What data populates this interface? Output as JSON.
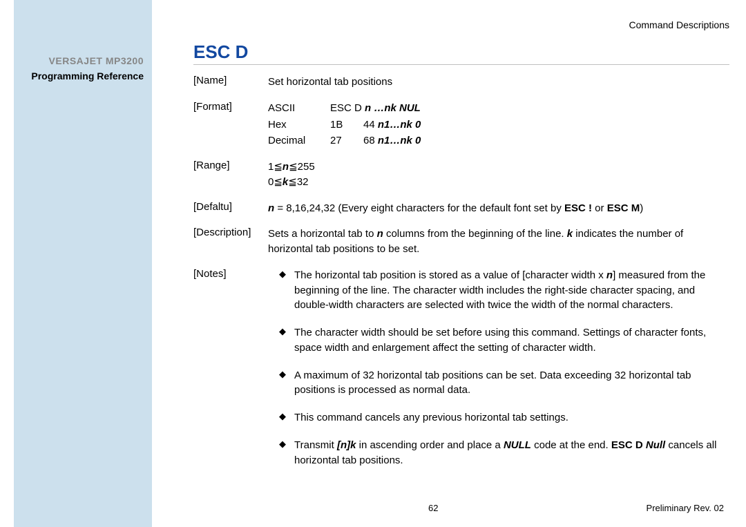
{
  "sidebar": {
    "title": "VERSAJET MP3200",
    "subtitle": "Programming Reference"
  },
  "header": {
    "right": "Command  Descriptions"
  },
  "command": {
    "title": "ESC D"
  },
  "sections": {
    "name": {
      "label": "[Name]",
      "value": "Set horizontal tab positions"
    },
    "format": {
      "label": "[Format]",
      "rows": {
        "ascii": {
          "enc": "ASCII",
          "val_pre": "ESC D ",
          "val_bold": "n …nk NUL"
        },
        "hex": {
          "enc": "Hex",
          "col2": "1B",
          "col3_pre": "44 ",
          "col3_bold": "n1…nk 0"
        },
        "dec": {
          "enc": "Decimal",
          "col2": "27",
          "col3_pre": "68 ",
          "col3_bold": "n1…nk 0"
        }
      }
    },
    "range": {
      "label": "[Range]",
      "line1_pre": "1≦",
      "line1_var": "n",
      "line1_post": "≦255",
      "line2_pre": "0≦",
      "line2_var": "k",
      "line2_post": "≦32"
    },
    "default": {
      "label": "[Defaltu]",
      "pre": "",
      "n_var": "n",
      "mid": " = 8,16,24,32 (Every eight characters for the default font set by ",
      "b1": "ESC !",
      "or": " or ",
      "b2": "ESC M",
      "end": ")"
    },
    "description": {
      "label": "[Description]",
      "p1a": "Sets a horizontal tab to ",
      "p1n": "n",
      "p1b": " columns from the beginning of the line. ",
      "p1k": "k",
      "p1c": " indicates the number of horizontal tab positions to be set."
    },
    "notes": {
      "label": "[Notes]",
      "items": {
        "0": {
          "a": "The horizontal tab position is stored as a value of [character width x ",
          "n": "n",
          "b": "] measured from the beginning of the line. The character width includes the right-side character spacing, and double-width characters are selected with twice the width of the normal characters."
        },
        "1": {
          "a": "The character width should be set before using this command. Settings of character fonts, space width and enlargement affect the setting of character width."
        },
        "2": {
          "a": "A maximum of 32 horizontal tab positions can be set. Data exceeding 32 horizontal tab positions is processed as normal data."
        },
        "3": {
          "a": " This command cancels any previous horizontal tab settings."
        },
        "4": {
          "a": "Transmit ",
          "b1": "[n]k",
          "b": " in ascending order and place a ",
          "b2": "NULL",
          "c": " code at the end. ",
          "b3": "ESC D ",
          "b4": "Null",
          "d": " cancels all horizontal tab positions."
        }
      }
    }
  },
  "footer": {
    "page": "62",
    "rev": "Preliminary Rev. 02"
  }
}
